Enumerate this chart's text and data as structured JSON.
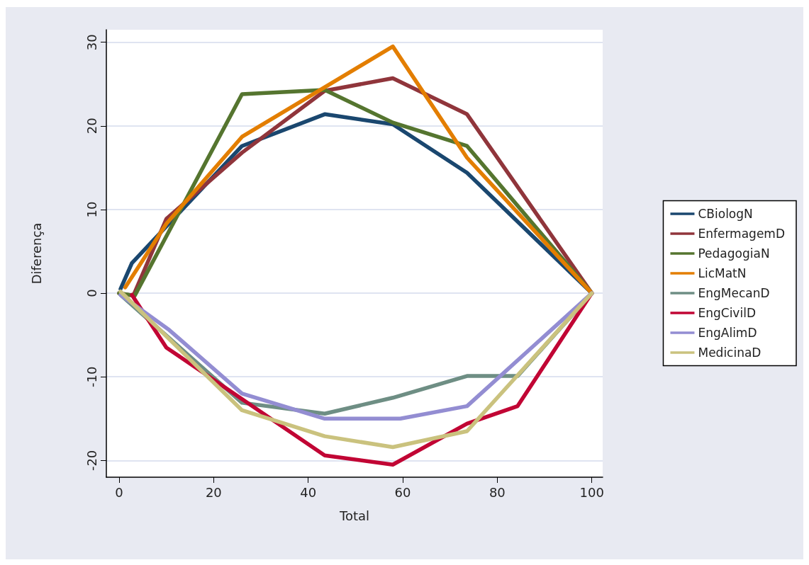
{
  "chart_data": {
    "type": "line",
    "xlabel": "Total",
    "ylabel": "Diferença",
    "xlim": [
      -2.7,
      102.3
    ],
    "ylim": [
      -22,
      31.5
    ],
    "xticks": [
      0,
      20,
      40,
      60,
      80,
      100
    ],
    "yticks": [
      -20,
      -10,
      0,
      10,
      20,
      30
    ],
    "grid": "y",
    "legend": "right",
    "marker": "none",
    "line_style": "solid",
    "series": [
      {
        "name": "CBiologN",
        "color": "#1a476f",
        "x": [
          0.3,
          2.7,
          26,
          43.5,
          57.9,
          73.6,
          100
        ],
        "values": [
          0.5,
          3.6,
          17.6,
          21.4,
          20.2,
          14.4,
          0
        ]
      },
      {
        "name": "EnfermagemD",
        "color": "#90353b",
        "x": [
          0,
          3,
          10,
          26,
          43.5,
          57.9,
          73.6,
          100
        ],
        "values": [
          0,
          -0.3,
          8.9,
          16.8,
          24.2,
          25.7,
          21.4,
          0
        ]
      },
      {
        "name": "PedagogiaN",
        "color": "#55752f",
        "x": [
          0,
          3.3,
          26,
          43.5,
          57.9,
          73.6,
          100
        ],
        "values": [
          0,
          -0.3,
          23.8,
          24.3,
          20.4,
          17.6,
          0
        ]
      },
      {
        "name": "LicMatN",
        "color": "#e37e00",
        "x": [
          1.3,
          10,
          26,
          57.9,
          73.6,
          100
        ],
        "values": [
          0.7,
          8.3,
          18.7,
          29.5,
          16.2,
          0
        ]
      },
      {
        "name": "EngMecanD",
        "color": "#6e8e84",
        "x": [
          0.3,
          26,
          43.5,
          57.9,
          73.6,
          84.3,
          100
        ],
        "values": [
          -0.2,
          -13.1,
          -14.4,
          -12.5,
          -9.9,
          -9.9,
          0
        ]
      },
      {
        "name": "EngCivilD",
        "color": "#c10534",
        "x": [
          2.7,
          10,
          43.5,
          57.9,
          73.6,
          84.3,
          100
        ],
        "values": [
          -0.2,
          -6.5,
          -19.4,
          -20.5,
          -15.6,
          -13.5,
          0
        ]
      },
      {
        "name": "EngAlimD",
        "color": "#938dd2",
        "x": [
          0.3,
          10.6,
          26,
          43.5,
          59.5,
          73.6,
          100
        ],
        "values": [
          -0.2,
          -4.4,
          -12,
          -15,
          -15,
          -13.5,
          0
        ]
      },
      {
        "name": "MedicinaD",
        "color": "#cac27e",
        "x": [
          0.3,
          26,
          43.5,
          57.9,
          73.6,
          100
        ],
        "values": [
          0.2,
          -14,
          -17.1,
          -18.4,
          -16.5,
          0
        ]
      }
    ]
  }
}
